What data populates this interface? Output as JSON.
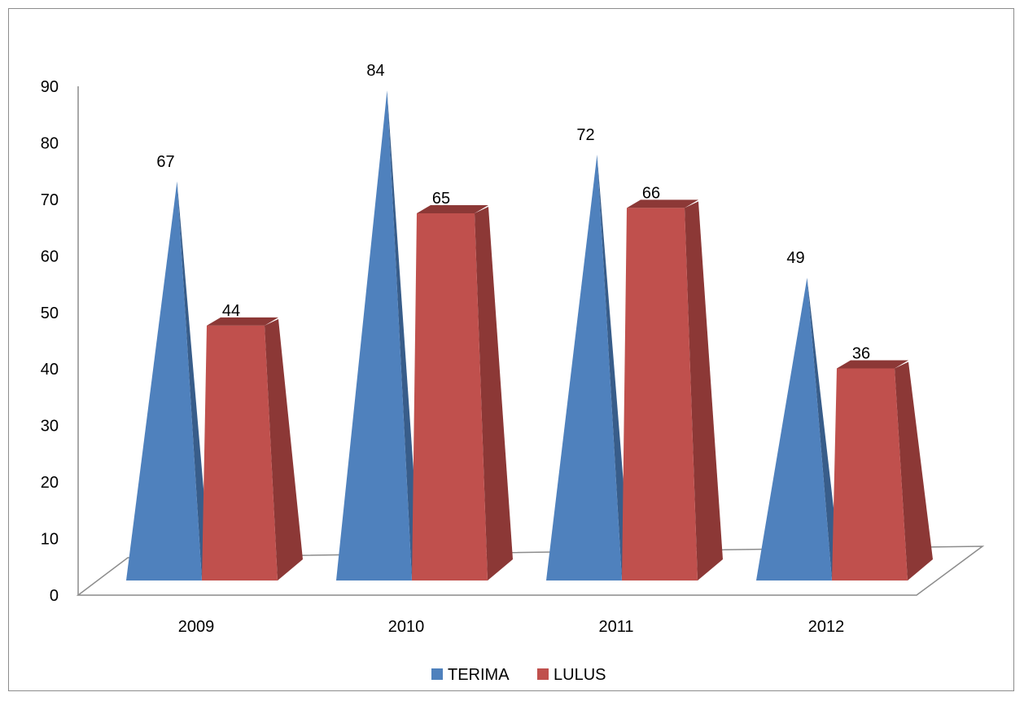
{
  "chart_data": {
    "type": "bar",
    "style": "3d-cone-pyramid",
    "categories": [
      "2009",
      "2010",
      "2011",
      "2012"
    ],
    "series": [
      {
        "name": "TERIMA",
        "shape": "cone",
        "values": [
          67,
          84,
          72,
          49
        ],
        "color": "#4F81BD",
        "side_color": "#385D8A"
      },
      {
        "name": "LULUS",
        "shape": "pyramid",
        "values": [
          44,
          65,
          66,
          36
        ],
        "color": "#C0504D",
        "side_color": "#8C3836"
      }
    ],
    "title": "",
    "xlabel": "",
    "ylabel": "",
    "ylim": [
      0,
      90
    ],
    "yticks": [
      "0",
      "10",
      "20",
      "30",
      "40",
      "50",
      "60",
      "70",
      "80",
      "90"
    ],
    "grid": false,
    "legend": "bottom"
  }
}
